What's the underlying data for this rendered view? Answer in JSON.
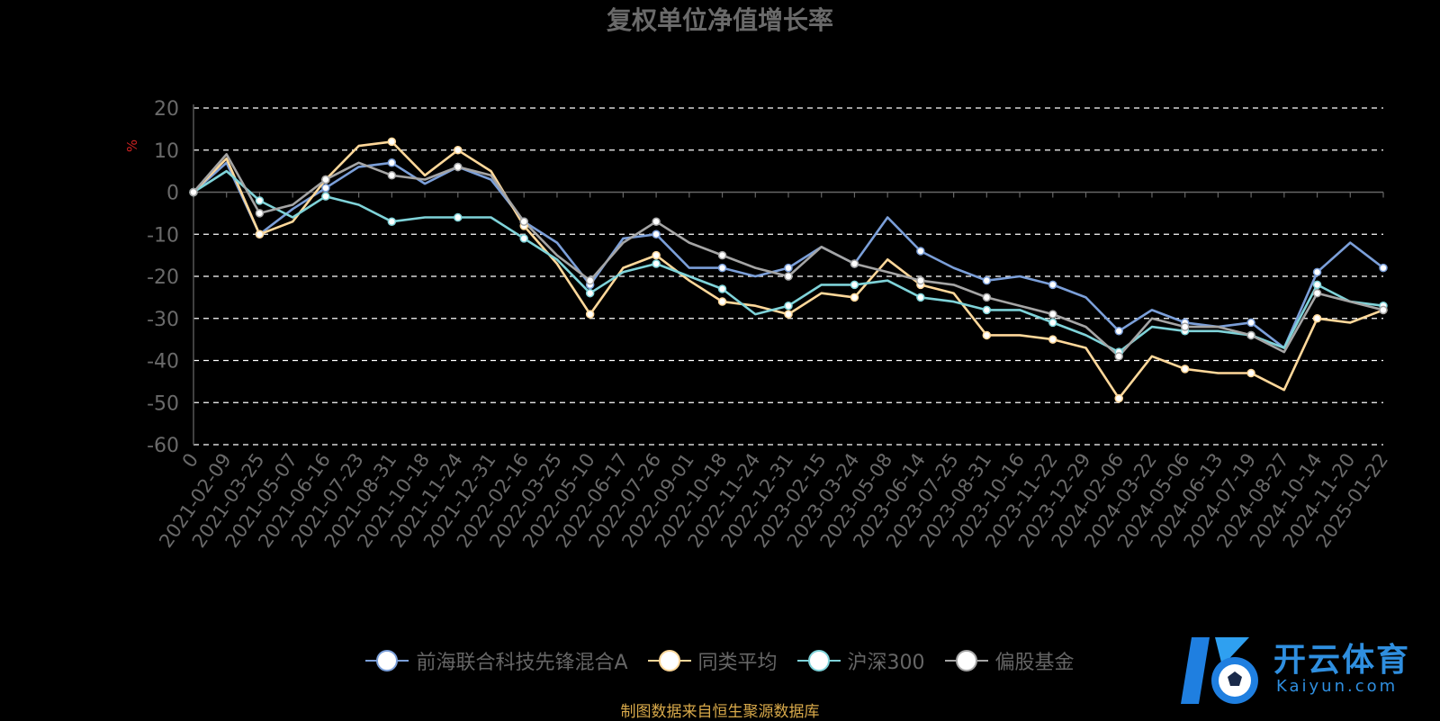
{
  "chart_data": {
    "type": "line",
    "title": "复权单位净值增长率",
    "ylabel": "%",
    "ylim": [
      -60,
      20
    ],
    "yticks": [
      20,
      10,
      0,
      -10,
      -20,
      -30,
      -40,
      -50,
      -60
    ],
    "grid": true,
    "legend_placement": "bottom-center",
    "x": [
      "0",
      "2021-02-09",
      "2021-03-25",
      "2021-05-07",
      "2021-06-16",
      "2021-07-23",
      "2021-08-31",
      "2021-10-18",
      "2021-11-24",
      "2021-12-31",
      "2022-02-16",
      "2022-03-25",
      "2022-05-10",
      "2022-06-17",
      "2022-07-26",
      "2022-09-01",
      "2022-10-18",
      "2022-11-24",
      "2022-12-31",
      "2023-02-15",
      "2023-03-24",
      "2023-05-08",
      "2023-06-14",
      "2023-07-25",
      "2023-08-31",
      "2023-10-16",
      "2023-11-22",
      "2023-12-29",
      "2024-02-06",
      "2024-03-22",
      "2024-05-06",
      "2024-06-13",
      "2024-07-19",
      "2024-08-27",
      "2024-10-14",
      "2024-11-20",
      "2025-01-22"
    ],
    "series": [
      {
        "name": "前海联合科技先锋混合A",
        "color": "#7b9fd9",
        "values": [
          0,
          7,
          -10,
          -4,
          1,
          6,
          7,
          2,
          6,
          3,
          -7,
          -12,
          -22,
          -11,
          -10,
          -18,
          -18,
          -20,
          -18,
          -13,
          -17,
          -6,
          -14,
          -18,
          -21,
          -20,
          -22,
          -25,
          -33,
          -28,
          -31,
          -32,
          -31,
          -37,
          -19,
          -12,
          -18
        ]
      },
      {
        "name": "同类平均",
        "color": "#ffd89a",
        "values": [
          0,
          8,
          -10,
          -7,
          3,
          11,
          12,
          4,
          10,
          5,
          -8,
          -17,
          -29,
          -18,
          -15,
          -21,
          -26,
          -27,
          -29,
          -24,
          -25,
          -16,
          -22,
          -24,
          -34,
          -34,
          -35,
          -37,
          -49,
          -39,
          -42,
          -43,
          -43,
          -47,
          -30,
          -31,
          -28
        ]
      },
      {
        "name": "沪深300",
        "color": "#7fd3d9",
        "values": [
          0,
          5,
          -2,
          -6,
          -1,
          -3,
          -7,
          -6,
          -6,
          -6,
          -11,
          -16,
          -24,
          -19,
          -17,
          -20,
          -23,
          -29,
          -27,
          -22,
          -22,
          -21,
          -25,
          -26,
          -28,
          -28,
          -31,
          -34,
          -38,
          -32,
          -33,
          -33,
          -34,
          -37,
          -22,
          -26,
          -27
        ]
      },
      {
        "name": "偏股基金",
        "color": "#a5a5a5",
        "values": [
          0,
          9,
          -5,
          -3,
          3,
          7,
          4,
          3,
          6,
          4,
          -7,
          -15,
          -21,
          -12,
          -7,
          -12,
          -15,
          -18,
          -20,
          -13,
          -17,
          -19,
          -21,
          -22,
          -25,
          -27,
          -29,
          -32,
          -39,
          -30,
          -32,
          -32,
          -34,
          -38,
          -24,
          -26,
          -28
        ]
      }
    ]
  },
  "legend": {
    "items": [
      {
        "label": "前海联合科技先锋混合A",
        "color": "#7b9fd9"
      },
      {
        "label": "同类平均",
        "color": "#ffd89a"
      },
      {
        "label": "沪深300",
        "color": "#7fd3d9"
      },
      {
        "label": "偏股基金",
        "color": "#a5a5a5"
      }
    ]
  },
  "source_text": "制图数据来自恒生聚源数据库",
  "logo": {
    "brand": "开云体育",
    "url_text": "Kaiyun.com"
  }
}
